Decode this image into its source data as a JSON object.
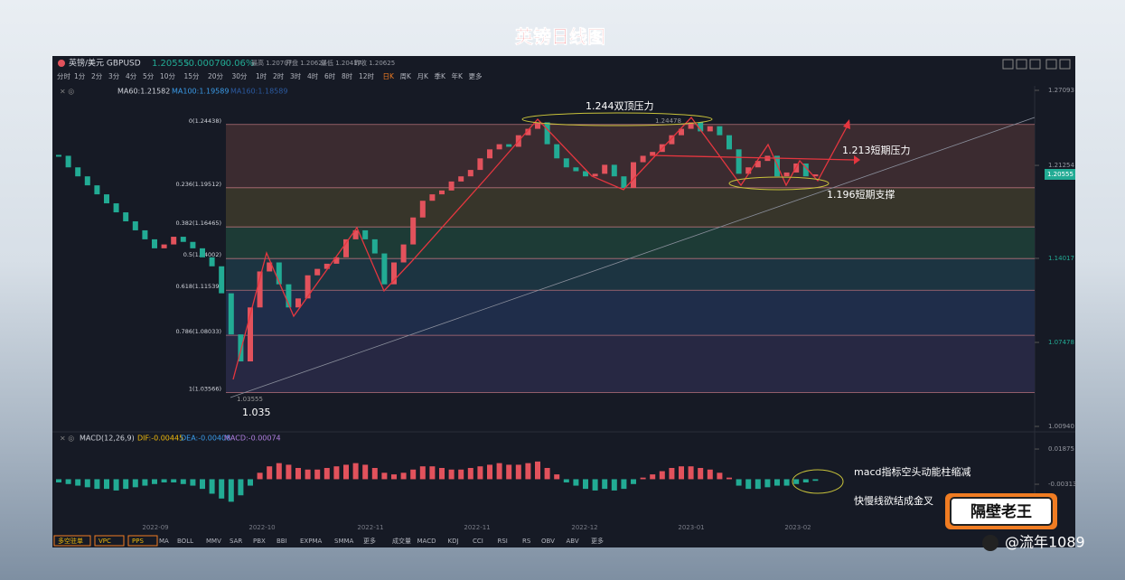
{
  "title": "英镑日线图",
  "header": {
    "symbol": "英镑/美元 GBPUSD",
    "price": "1.20555",
    "change": "-0.00070",
    "change_pct": "-0.06%",
    "stats": [
      "最高 1.20707",
      "开盘 1.20627",
      "最低 1.20417",
      "昨收 1.20625"
    ]
  },
  "timeframes": [
    "分时",
    "1分",
    "2分",
    "3分",
    "4分",
    "5分",
    "10分",
    "15分",
    "20分",
    "30分",
    "1时",
    "2时",
    "3时",
    "4时",
    "6时",
    "8时",
    "12时",
    "日K",
    "周K",
    "月K",
    "季K",
    "年K",
    "更多"
  ],
  "ma_legend": [
    "MA60:1.21582",
    "MA100:1.19589",
    "MA160:1.18589"
  ],
  "macd_legend": [
    "MACD(12,26,9)",
    "DIF:-0.00445",
    "DEA:-0.00408",
    "MACD:-0.00074"
  ],
  "dates": [
    "2022-09",
    "2022-10",
    "2022-11",
    "2022-11",
    "2022-12",
    "2023-01",
    "2023-02"
  ],
  "toolbar_buttons": [
    "多空驻单",
    "VPC",
    "PPS"
  ],
  "indicators": [
    "MA",
    "BOLL",
    "MMV",
    "SAR",
    "PBX",
    "BBI",
    "EXPMA",
    "SMMA",
    "更多"
  ],
  "sub_indicators": [
    "成交量",
    "MACD",
    "KDJ",
    "CCI",
    "RSI",
    "RS",
    "OBV",
    "ABV",
    "更多"
  ],
  "annotations": [
    "1.244双顶压力",
    "1.213短期压力",
    "1.196短期支撑",
    "1.035",
    "macd指标空头动能柱缩减",
    "快慢线欲结成金叉"
  ],
  "watermark": "@流年1089",
  "logo": "隔壁老王",
  "chart": {
    "type": "candlestick",
    "ylim": [
      1.0094,
      1.27093
    ],
    "yticks": [
      1.27093,
      1.21254,
      1.14017,
      1.07478,
      {
        "value": 1.0094,
        "label": "1.00940"
      }
    ],
    "current_price": 1.20555,
    "high_label": "1.24478",
    "low_label": "1.03555",
    "fib_levels": [
      {
        "value": 1.24438,
        "label": "0(1.24438)"
      },
      {
        "value": 1.19512,
        "label": "0.236(1.19512)"
      },
      {
        "value": 1.16465,
        "label": "0.382(1.16465)"
      },
      {
        "value": 1.14002,
        "label": "0.5(1.14002)"
      },
      {
        "value": 1.11539,
        "label": "0.618(1.11539)"
      },
      {
        "value": 1.08033,
        "label": "0.786(1.08033)"
      },
      {
        "value": 1.03566,
        "label": "1(1.03566)"
      }
    ],
    "band_colors": [
      "#3b2b30",
      "#37352a",
      "#1d3b36",
      "#1c3441",
      "#1f2d4a",
      "#272843"
    ],
    "up_color": "#e2525c",
    "down_color": "#22ab94",
    "closes": [
      1.22,
      1.211,
      1.204,
      1.197,
      1.19,
      1.183,
      1.176,
      1.169,
      1.162,
      1.155,
      1.148,
      1.151,
      1.157,
      1.153,
      1.148,
      1.141,
      1.134,
      1.113,
      1.081,
      1.06,
      1.102,
      1.13,
      1.137,
      1.12,
      1.102,
      1.109,
      1.127,
      1.132,
      1.136,
      1.141,
      1.155,
      1.162,
      1.155,
      1.144,
      1.12,
      1.137,
      1.151,
      1.172,
      1.185,
      1.19,
      1.193,
      1.2,
      1.204,
      1.209,
      1.218,
      1.225,
      1.229,
      1.227,
      1.236,
      1.241,
      1.246,
      1.229,
      1.218,
      1.211,
      1.208,
      1.204,
      1.206,
      1.213,
      1.204,
      1.195,
      1.215,
      1.22,
      1.223,
      1.229,
      1.236,
      1.241,
      1.246,
      1.239,
      1.243,
      1.236,
      1.225,
      1.206,
      1.211,
      1.216,
      1.22,
      1.204,
      1.207,
      1.214,
      1.204,
      1.20555
    ]
  },
  "macd": {
    "type": "bar",
    "ylim": [
      -0.0267,
      0.0272
    ],
    "yticks": [
      0.01875,
      -0.00313
    ],
    "values": [
      -0.002,
      -0.003,
      -0.004,
      -0.005,
      -0.006,
      -0.006,
      -0.007,
      -0.006,
      -0.005,
      -0.004,
      -0.003,
      -0.002,
      -0.002,
      -0.003,
      -0.004,
      -0.006,
      -0.009,
      -0.012,
      -0.014,
      -0.01,
      -0.004,
      0.004,
      0.008,
      0.01,
      0.009,
      0.007,
      0.006,
      0.006,
      0.007,
      0.008,
      0.009,
      0.01,
      0.009,
      0.007,
      0.004,
      0.003,
      0.004,
      0.006,
      0.008,
      0.008,
      0.007,
      0.006,
      0.006,
      0.007,
      0.008,
      0.009,
      0.01,
      0.009,
      0.009,
      0.01,
      0.011,
      0.007,
      0.003,
      -0.002,
      -0.004,
      -0.006,
      -0.007,
      -0.006,
      -0.007,
      -0.006,
      -0.003,
      0.001,
      0.003,
      0.005,
      0.007,
      0.008,
      0.008,
      0.007,
      0.006,
      0.004,
      0.001,
      -0.004,
      -0.006,
      -0.006,
      -0.005,
      -0.004,
      -0.004,
      -0.003,
      -0.002,
      -0.001
    ]
  }
}
